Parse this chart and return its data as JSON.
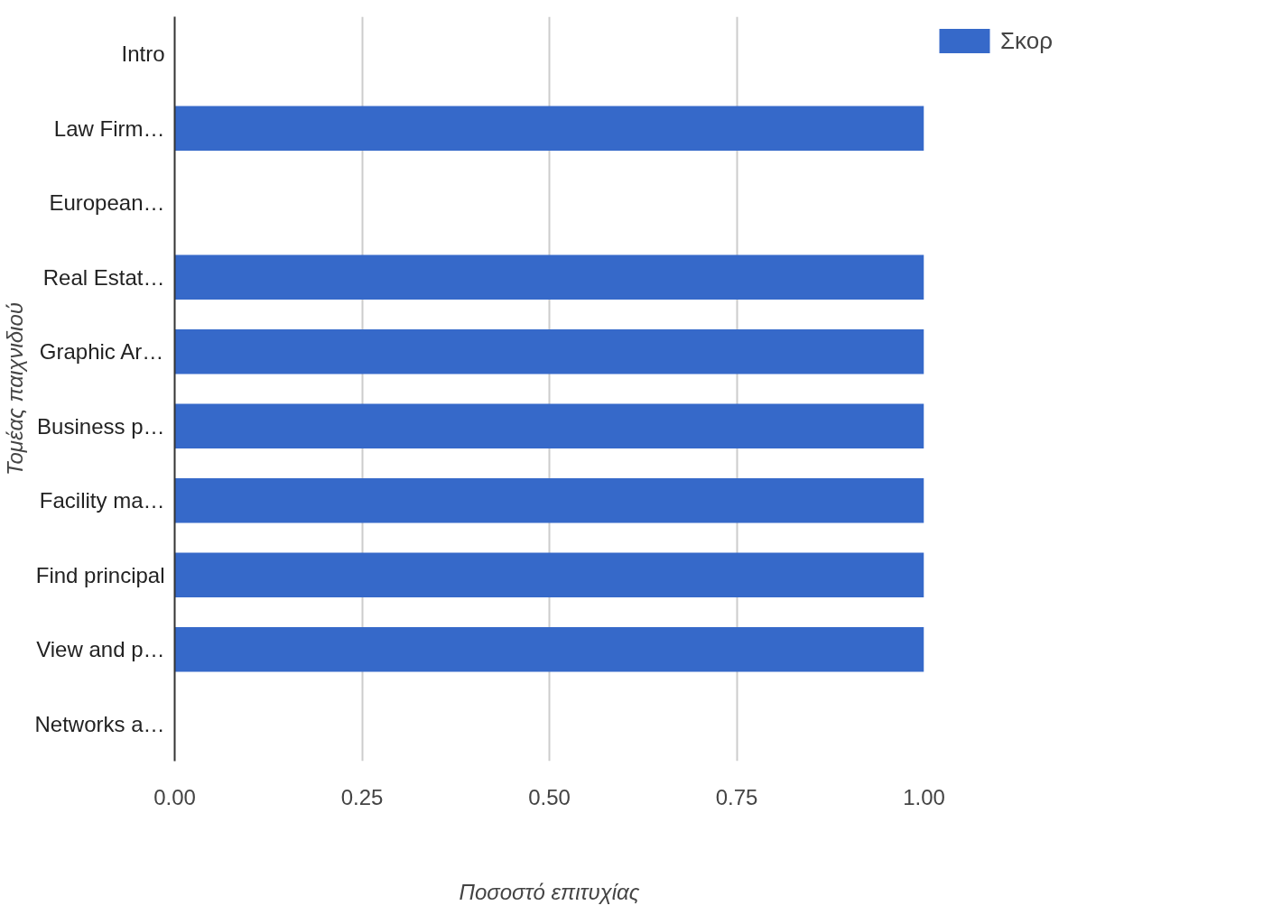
{
  "chart_data": {
    "type": "bar",
    "orientation": "horizontal",
    "xlabel": "Ποσοστό επιτυχίας",
    "ylabel": "Τομέας παιχνιδιού",
    "categories": [
      "Intro",
      "Law Firm…",
      "European…",
      "Real Estat…",
      "Graphic Ar…",
      "Business p…",
      "Facility ma…",
      "Find principal",
      "View and p…",
      "Networks a…"
    ],
    "series": [
      {
        "name": "Σκορ",
        "color": "#3669c9",
        "values": [
          0,
          1,
          0,
          1,
          1,
          1,
          1,
          1,
          1,
          0
        ]
      }
    ],
    "xlim": [
      0,
      1
    ],
    "xticks": [
      {
        "value": 0,
        "label": "0.00"
      },
      {
        "value": 0.25,
        "label": "0.25"
      },
      {
        "value": 0.5,
        "label": "0.50"
      },
      {
        "value": 0.75,
        "label": "0.75"
      },
      {
        "value": 1,
        "label": "1.00"
      }
    ],
    "grid": "x",
    "legend": "top right"
  }
}
